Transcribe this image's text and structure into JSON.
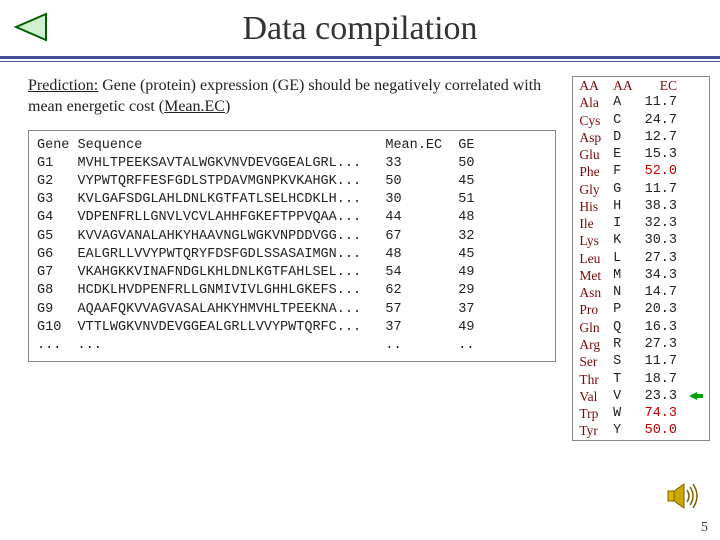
{
  "slide": {
    "title": "Data compilation",
    "number": "5"
  },
  "prediction": {
    "label": "Prediction:",
    "text_before": " Gene (protein) expression (GE) should be negatively correlated with mean energetic cost (",
    "link": "Mean.EC",
    "text_after": ")"
  },
  "gene_table": {
    "header": {
      "gene": "Gene",
      "seq": "Sequence",
      "meanec": "Mean.EC",
      "ge": "GE"
    },
    "rows": [
      {
        "g": "G1",
        "s": "MVHLTPEEKSAVTALWGKVNVDEVGGEALGRL...",
        "m": "33",
        "e": "50"
      },
      {
        "g": "G2",
        "s": "VYPWTQRFFESFGDLSTPDAVMGNPKVKAHGK...",
        "m": "50",
        "e": "45"
      },
      {
        "g": "G3",
        "s": "KVLGAFSDGLAHLDNLKGTFATLSELHCDKLH...",
        "m": "30",
        "e": "51"
      },
      {
        "g": "G4",
        "s": "VDPENFRLLGNVLVCVLAHHFGKEFTPPVQAA...",
        "m": "44",
        "e": "48"
      },
      {
        "g": "G5",
        "s": "KVVAGVANALAHKYHAAVNGLWGKVNPDDVGG...",
        "m": "67",
        "e": "32"
      },
      {
        "g": "G6",
        "s": "EALGRLLVVYPWTQRYFDSFGDLSSASAIMGN...",
        "m": "48",
        "e": "45"
      },
      {
        "g": "G7",
        "s": "VKAHGKKVINAFNDGLKHLDNLKGTFAHLSEL...",
        "m": "54",
        "e": "49"
      },
      {
        "g": "G8",
        "s": "HCDKLHVDPENFRLLGNMIVIVLGHHLGKEFS...",
        "m": "62",
        "e": "29"
      },
      {
        "g": "G9",
        "s": "AQAAFQKVVAGVASALAHKYHMVHLTPEEKNA...",
        "m": "57",
        "e": "37"
      },
      {
        "g": "G10",
        "s": "VTTLWGKVNVDEVGGEALGRLLVVYPWTQRFC...",
        "m": "37",
        "e": "49"
      },
      {
        "g": "...",
        "s": "...",
        "m": "..",
        "e": ".."
      }
    ]
  },
  "aa_table": {
    "headers": {
      "aa1": "AA",
      "aa2": "AA",
      "ec": "EC"
    },
    "rows": [
      {
        "name": "Ala",
        "code": "A",
        "ec": "11.7",
        "hi": false,
        "arrow": false
      },
      {
        "name": "Cys",
        "code": "C",
        "ec": "24.7",
        "hi": false,
        "arrow": false
      },
      {
        "name": "Asp",
        "code": "D",
        "ec": "12.7",
        "hi": false,
        "arrow": false
      },
      {
        "name": "Glu",
        "code": "E",
        "ec": "15.3",
        "hi": false,
        "arrow": false
      },
      {
        "name": "Phe",
        "code": "F",
        "ec": "52.0",
        "hi": true,
        "arrow": false
      },
      {
        "name": "Gly",
        "code": "G",
        "ec": "11.7",
        "hi": false,
        "arrow": false
      },
      {
        "name": "His",
        "code": "H",
        "ec": "38.3",
        "hi": false,
        "arrow": false
      },
      {
        "name": "Ile",
        "code": "I",
        "ec": "32.3",
        "hi": false,
        "arrow": false
      },
      {
        "name": "Lys",
        "code": "K",
        "ec": "30.3",
        "hi": false,
        "arrow": false
      },
      {
        "name": "Leu",
        "code": "L",
        "ec": "27.3",
        "hi": false,
        "arrow": false
      },
      {
        "name": "Met",
        "code": "M",
        "ec": "34.3",
        "hi": false,
        "arrow": false
      },
      {
        "name": "Asn",
        "code": "N",
        "ec": "14.7",
        "hi": false,
        "arrow": false
      },
      {
        "name": "Pro",
        "code": "P",
        "ec": "20.3",
        "hi": false,
        "arrow": false
      },
      {
        "name": "Gln",
        "code": "Q",
        "ec": "16.3",
        "hi": false,
        "arrow": false
      },
      {
        "name": "Arg",
        "code": "R",
        "ec": "27.3",
        "hi": false,
        "arrow": false
      },
      {
        "name": "Ser",
        "code": "S",
        "ec": "11.7",
        "hi": false,
        "arrow": false
      },
      {
        "name": "Thr",
        "code": "T",
        "ec": "18.7",
        "hi": false,
        "arrow": false
      },
      {
        "name": "Val",
        "code": "V",
        "ec": "23.3",
        "hi": false,
        "arrow": true
      },
      {
        "name": "Trp",
        "code": "W",
        "ec": "74.3",
        "hi": true,
        "arrow": false
      },
      {
        "name": "Tyr",
        "code": "Y",
        "ec": "50.0",
        "hi": true,
        "arrow": false
      }
    ]
  },
  "colors": {
    "rule": "#435196",
    "aa_name": "#7a0a0a",
    "ec_red": "#c00000",
    "arrow_green": "#00a000"
  }
}
